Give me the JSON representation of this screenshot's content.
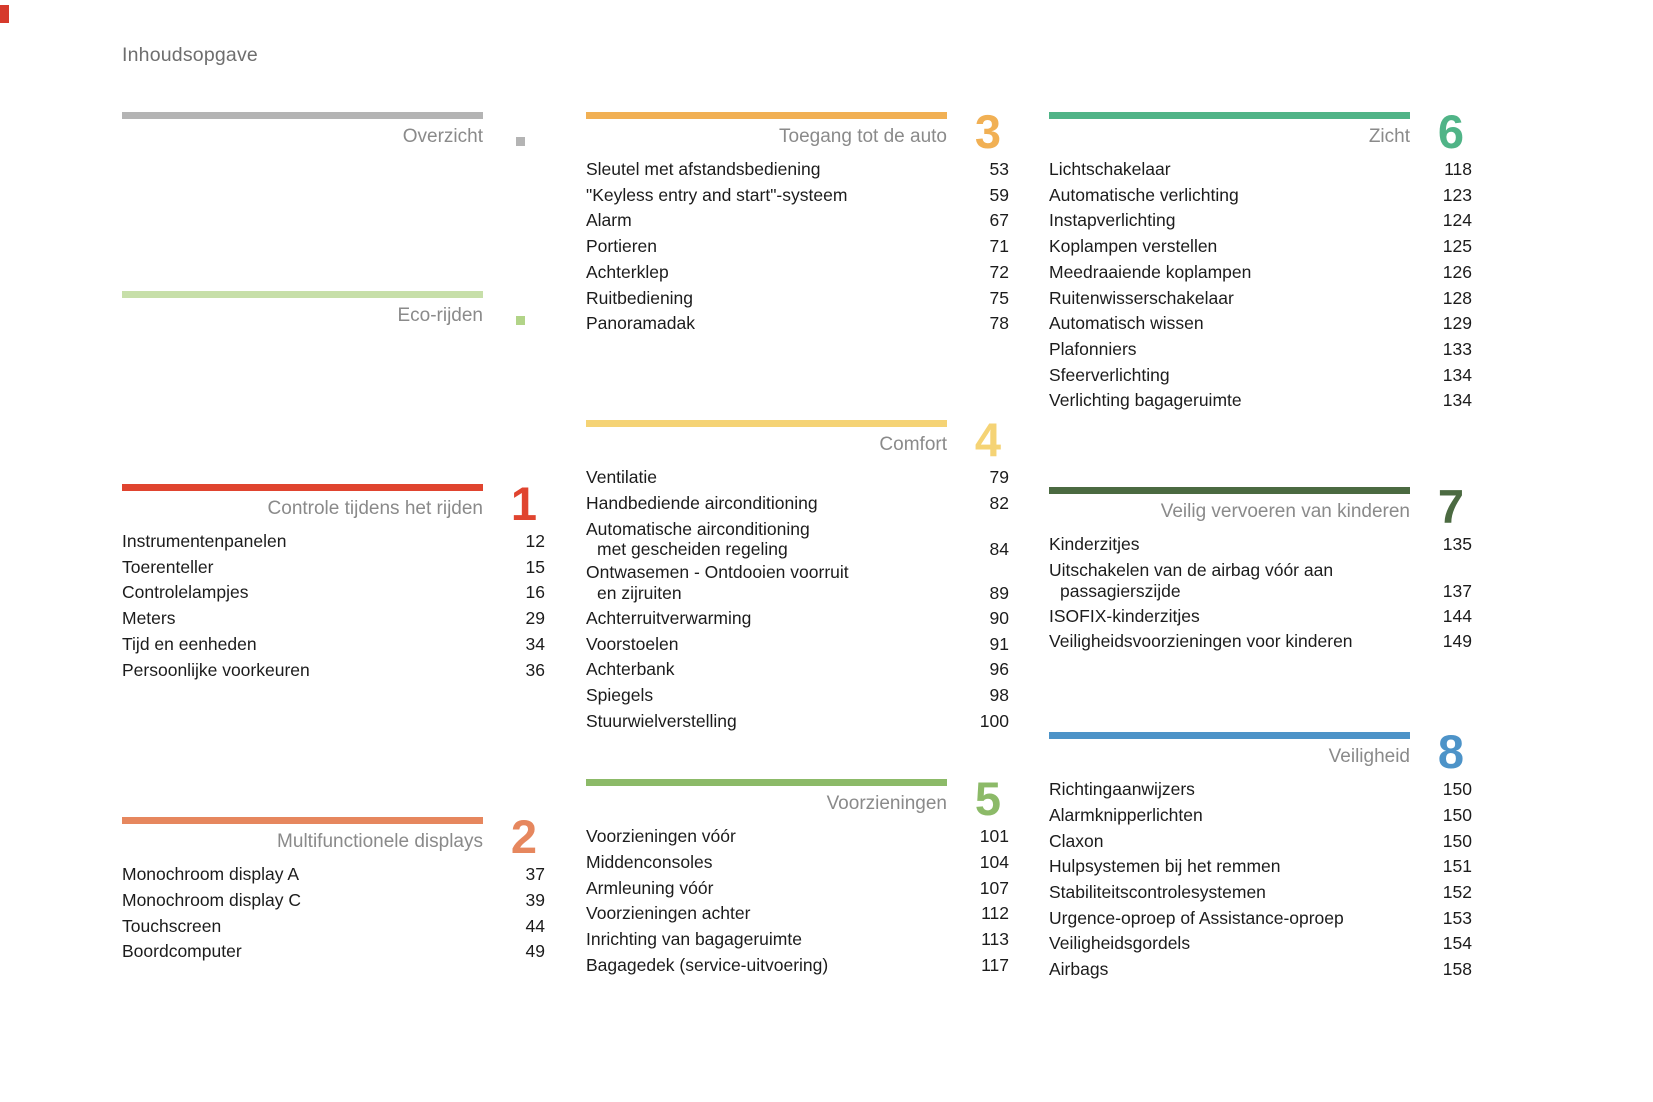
{
  "page": {
    "title": "Inhoudsopgave",
    "corner_mark_color": "#d63a2c",
    "text_color": "#1c1c1c",
    "title_gray": "#8a8a8a"
  },
  "columns": [
    {
      "sections": [
        {
          "title": "Overzicht",
          "accent": "#b4b4b4",
          "marker_color": "#b4b4b4",
          "items": []
        },
        {
          "title": "Eco-rijden",
          "accent": "#c7dfa9",
          "marker_color": "#b2d488",
          "items": []
        },
        {
          "title": "Controle tijdens het rijden",
          "number": "1",
          "accent": "#e0442f",
          "items": [
            {
              "lines": [
                "Instrumentenpanelen"
              ],
              "page": "12"
            },
            {
              "lines": [
                "Toerenteller"
              ],
              "page": "15"
            },
            {
              "lines": [
                "Controlelampjes"
              ],
              "page": "16"
            },
            {
              "lines": [
                "Meters"
              ],
              "page": "29"
            },
            {
              "lines": [
                "Tijd en eenheden"
              ],
              "page": "34"
            },
            {
              "lines": [
                "Persoonlijke voorkeuren"
              ],
              "page": "36"
            }
          ]
        },
        {
          "title": "Multifunctionele displays",
          "number": "2",
          "accent": "#e6875e",
          "items": [
            {
              "lines": [
                "Monochroom display A"
              ],
              "page": "37"
            },
            {
              "lines": [
                "Monochroom display C"
              ],
              "page": "39"
            },
            {
              "lines": [
                "Touchscreen"
              ],
              "page": "44"
            },
            {
              "lines": [
                "Boordcomputer"
              ],
              "page": "49"
            }
          ]
        }
      ]
    },
    {
      "sections": [
        {
          "title": "Toegang tot de auto",
          "number": "3",
          "accent": "#f1b054",
          "items": [
            {
              "lines": [
                "Sleutel met afstandsbediening"
              ],
              "page": "53"
            },
            {
              "lines": [
                "\"Keyless entry and start\"-systeem"
              ],
              "page": "59"
            },
            {
              "lines": [
                "Alarm"
              ],
              "page": "67"
            },
            {
              "lines": [
                "Portieren"
              ],
              "page": "71"
            },
            {
              "lines": [
                "Achterklep"
              ],
              "page": "72"
            },
            {
              "lines": [
                "Ruitbediening"
              ],
              "page": "75"
            },
            {
              "lines": [
                "Panoramadak"
              ],
              "page": "78"
            }
          ]
        },
        {
          "title": "Comfort",
          "number": "4",
          "accent": "#f5d375",
          "items": [
            {
              "lines": [
                "Ventilatie"
              ],
              "page": "79"
            },
            {
              "lines": [
                "Handbediende airconditioning"
              ],
              "page": "82"
            },
            {
              "lines": [
                "Automatische airconditioning",
                "met gescheiden regeling"
              ],
              "page": "84"
            },
            {
              "lines": [
                "Ontwasemen - Ontdooien voorruit",
                "en zijruiten"
              ],
              "page": "89"
            },
            {
              "lines": [
                "Achterruitverwarming"
              ],
              "page": "90"
            },
            {
              "lines": [
                "Voorstoelen"
              ],
              "page": "91"
            },
            {
              "lines": [
                "Achterbank"
              ],
              "page": "96"
            },
            {
              "lines": [
                "Spiegels"
              ],
              "page": "98"
            },
            {
              "lines": [
                "Stuurwielverstelling"
              ],
              "page": "100"
            }
          ]
        },
        {
          "title": "Voorzieningen",
          "number": "5",
          "accent": "#8cba68",
          "items": [
            {
              "lines": [
                "Voorzieningen vóór"
              ],
              "page": "101"
            },
            {
              "lines": [
                "Middenconsoles"
              ],
              "page": "104"
            },
            {
              "lines": [
                "Armleuning vóór"
              ],
              "page": "107"
            },
            {
              "lines": [
                "Voorzieningen achter"
              ],
              "page": "112"
            },
            {
              "lines": [
                "Inrichting van bagageruimte"
              ],
              "page": "113"
            },
            {
              "lines": [
                "Bagagedek (service-uitvoering)"
              ],
              "page": "117"
            }
          ]
        }
      ]
    },
    {
      "sections": [
        {
          "title": "Zicht",
          "number": "6",
          "accent": "#50b487",
          "items": [
            {
              "lines": [
                "Lichtschakelaar"
              ],
              "page": "118"
            },
            {
              "lines": [
                "Automatische verlichting"
              ],
              "page": "123"
            },
            {
              "lines": [
                "Instapverlichting"
              ],
              "page": "124"
            },
            {
              "lines": [
                "Koplampen verstellen"
              ],
              "page": "125"
            },
            {
              "lines": [
                "Meedraaiende koplampen"
              ],
              "page": "126"
            },
            {
              "lines": [
                "Ruitenwisserschakelaar"
              ],
              "page": "128"
            },
            {
              "lines": [
                "Automatisch wissen"
              ],
              "page": "129"
            },
            {
              "lines": [
                "Plafonniers"
              ],
              "page": "133"
            },
            {
              "lines": [
                "Sfeerverlichting"
              ],
              "page": "134"
            },
            {
              "lines": [
                "Verlichting bagageruimte"
              ],
              "page": "134"
            }
          ]
        },
        {
          "title": "Veilig vervoeren van kinderen",
          "number": "7",
          "accent": "#4b6a41",
          "items": [
            {
              "lines": [
                "Kinderzitjes"
              ],
              "page": "135"
            },
            {
              "lines": [
                "Uitschakelen van de airbag vóór aan",
                "passagierszijde"
              ],
              "page": "137"
            },
            {
              "lines": [
                "ISOFIX-kinderzitjes"
              ],
              "page": "144"
            },
            {
              "lines": [
                "Veiligheidsvoorzieningen voor kinderen"
              ],
              "page": "149"
            }
          ]
        },
        {
          "title": "Veiligheid",
          "number": "8",
          "accent": "#4d93c8",
          "items": [
            {
              "lines": [
                "Richtingaanwijzers"
              ],
              "page": "150"
            },
            {
              "lines": [
                "Alarmknipperlichten"
              ],
              "page": "150"
            },
            {
              "lines": [
                "Claxon"
              ],
              "page": "150"
            },
            {
              "lines": [
                "Hulpsystemen bij het remmen"
              ],
              "page": "151"
            },
            {
              "lines": [
                "Stabiliteitscontrolesystemen"
              ],
              "page": "152"
            },
            {
              "lines": [
                "Urgence-oproep of Assistance-oproep"
              ],
              "page": "153"
            },
            {
              "lines": [
                "Veiligheidsgordels"
              ],
              "page": "154"
            },
            {
              "lines": [
                "Airbags"
              ],
              "page": "158"
            }
          ]
        }
      ]
    }
  ]
}
